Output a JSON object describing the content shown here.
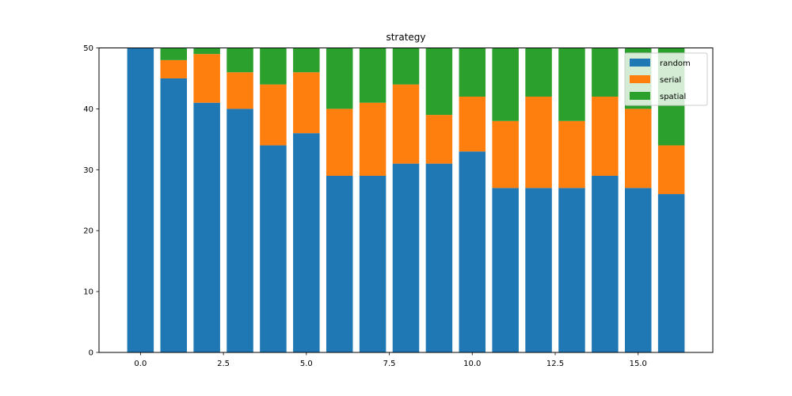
{
  "chart_data": {
    "type": "bar",
    "stacked": true,
    "title": "strategy",
    "xlabel": "",
    "ylabel": "",
    "x": [
      0,
      1,
      2,
      3,
      4,
      5,
      6,
      7,
      8,
      9,
      10,
      11,
      12,
      13,
      14,
      15,
      16
    ],
    "xlim": [
      -1.25,
      17.25
    ],
    "ylim": [
      0,
      50
    ],
    "xticks": [
      0.0,
      2.5,
      5.0,
      7.5,
      10.0,
      12.5,
      15.0
    ],
    "xtick_labels": [
      "0.0",
      "2.5",
      "5.0",
      "7.5",
      "10.0",
      "12.5",
      "15.0"
    ],
    "yticks": [
      0,
      10,
      20,
      30,
      40,
      50
    ],
    "ytick_labels": [
      "0",
      "10",
      "20",
      "30",
      "40",
      "50"
    ],
    "grid": false,
    "legend_position": "top-right",
    "series": [
      {
        "name": "random",
        "color": "#1f77b4",
        "values": [
          50,
          45,
          41,
          40,
          34,
          36,
          29,
          29,
          31,
          31,
          33,
          27,
          27,
          27,
          29,
          27,
          26
        ]
      },
      {
        "name": "serial",
        "color": "#ff7f0e",
        "values": [
          0,
          3,
          8,
          6,
          10,
          10,
          11,
          12,
          13,
          8,
          9,
          11,
          15,
          11,
          13,
          13,
          8
        ]
      },
      {
        "name": "spatial",
        "color": "#2ca02c",
        "values": [
          0,
          2,
          1,
          4,
          6,
          4,
          10,
          9,
          6,
          11,
          8,
          12,
          8,
          12,
          8,
          10,
          16
        ]
      }
    ]
  }
}
